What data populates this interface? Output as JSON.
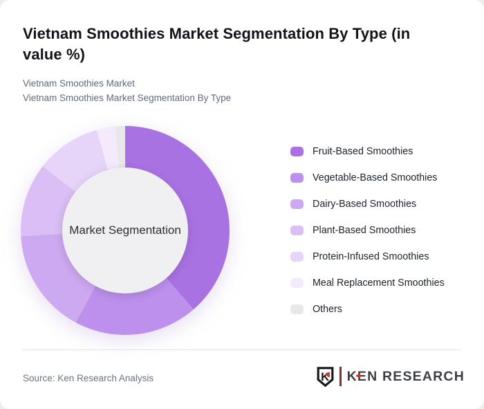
{
  "header": {
    "title_line1": "Vietnam Smoothies Market Segmentation By Type (in",
    "title_line2": "value %)",
    "subtitles": [
      "Vietnam Smoothies Market",
      "Vietnam Smoothies Market Segmentation By Type"
    ]
  },
  "chart_data": {
    "type": "pie",
    "subtype": "donut",
    "title": "Vietnam Smoothies Market Segmentation By Type (in value %)",
    "center_label": "Market Segmentation",
    "legend_position": "right",
    "start_angle_deg": 0,
    "direction": "clockwise",
    "categories": [
      "Fruit-Based Smoothies",
      "Vegetable-Based Smoothies",
      "Dairy-Based Smoothies",
      "Plant-Based Smoothies",
      "Protein-Infused Smoothies",
      "Meal Replacement Smoothies",
      "Others"
    ],
    "values": [
      38.6,
      19.2,
      16.3,
      11.4,
      10.1,
      2.9,
      1.5
    ],
    "colors": [
      "#a972e2",
      "#bc90ec",
      "#cda9f1",
      "#dabef5",
      "#e7d5f9",
      "#f3ebfc",
      "#e9e7ea"
    ],
    "hole_color": "#f0eff1"
  },
  "footer": {
    "source": "Source: Ken Research Analysis",
    "logo": {
      "badge_letter": "K",
      "wordmark": "KEN RESEARCH",
      "accent_color": "#c2382e"
    }
  }
}
